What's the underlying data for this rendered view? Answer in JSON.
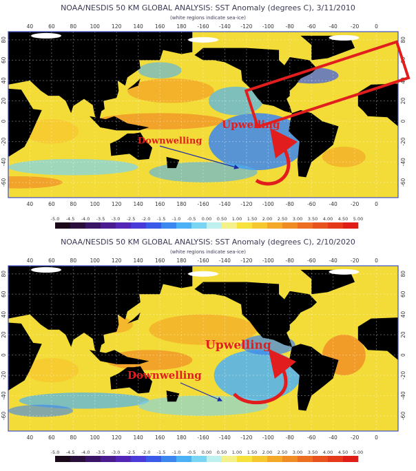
{
  "panels": [
    {
      "title": "NOAA/NESDIS 50 KM GLOBAL ANALYSIS: SST Anomaly (degrees C), 3/11/2010",
      "subtitle": "(white regions indicate sea-ice)",
      "lon_labels": [
        "40",
        "60",
        "80",
        "100",
        "120",
        "140",
        "160",
        "180",
        "-160",
        "-140",
        "-120",
        "-100",
        "-80",
        "-60",
        "-40",
        "-20",
        "0"
      ],
      "lat_labels": [
        "80",
        "60",
        "40",
        "20",
        "0",
        "-20",
        "-40",
        "-60"
      ],
      "colorbar_labels": [
        "-5.0",
        "-4.5",
        "-4.0",
        "-3.5",
        "-3.0",
        "-2.5",
        "-2.0",
        "-1.5",
        "-1.0",
        "-0.5",
        "0.00",
        "0.50",
        "1.00",
        "1.50",
        "2.00",
        "2.50",
        "3.00",
        "3.50",
        "4.00",
        "4.50",
        "5.00"
      ],
      "annotations": {
        "upwelling": "Upwelling",
        "downwelling": "Downwelling"
      }
    },
    {
      "title": "NOAA/NESDIS 50 KM GLOBAL ANALYSIS: SST Anomaly (degrees C), 2/10/2020",
      "subtitle": "(white regions indicate sea-ice)",
      "lon_labels": [
        "40",
        "60",
        "80",
        "100",
        "120",
        "140",
        "160",
        "180",
        "-160",
        "-140",
        "-120",
        "-100",
        "-80",
        "-60",
        "-40",
        "-20",
        "0"
      ],
      "lat_labels": [
        "80",
        "60",
        "40",
        "20",
        "0",
        "-20",
        "-40",
        "-60"
      ],
      "colorbar_labels": [
        "-5.0",
        "-4.5",
        "-4.0",
        "-3.5",
        "-3.0",
        "-2.5",
        "-2.0",
        "-1.5",
        "-1.0",
        "-0.5",
        "0.00",
        "0.50",
        "1.00",
        "1.50",
        "2.00",
        "2.50",
        "3.00",
        "3.50",
        "4.00",
        "4.50",
        "5.00"
      ],
      "annotations": {
        "upwelling": "Upwelling",
        "downwelling": "Downwelling"
      }
    }
  ]
}
